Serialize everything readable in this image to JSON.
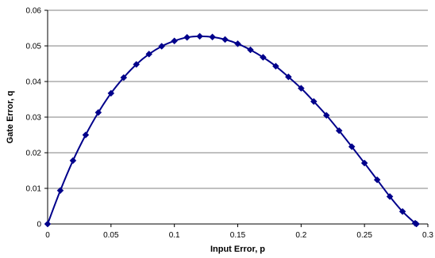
{
  "chart_data": {
    "type": "line",
    "title": "",
    "xlabel": "Input Error, p",
    "ylabel": "Gate Error, q",
    "xlim": [
      0,
      0.3
    ],
    "ylim": [
      0,
      0.06
    ],
    "xticks": [
      0,
      0.05,
      0.1,
      0.15,
      0.2,
      0.25,
      0.3
    ],
    "yticks": [
      0,
      0.01,
      0.02,
      0.03,
      0.04,
      0.05,
      0.06
    ],
    "xtick_labels": [
      "0",
      "0.05",
      "0.1",
      "0.15",
      "0.2",
      "0.25",
      "0.3"
    ],
    "ytick_labels": [
      "0",
      "0.01",
      "0.02",
      "0.03",
      "0.04",
      "0.05",
      "0.06"
    ],
    "grid": "horizontal",
    "legend": "none",
    "marker": "diamond",
    "series": [
      {
        "color": "#00008B",
        "x": [
          0,
          0.01,
          0.02,
          0.03,
          0.04,
          0.05,
          0.06,
          0.07,
          0.08,
          0.09,
          0.1,
          0.11,
          0.12,
          0.13,
          0.14,
          0.15,
          0.16,
          0.17,
          0.18,
          0.19,
          0.2,
          0.21,
          0.22,
          0.23,
          0.24,
          0.25,
          0.26,
          0.27,
          0.28,
          0.29,
          0.291
        ],
        "y": [
          0,
          0.0094,
          0.0178,
          0.025,
          0.0313,
          0.0367,
          0.0411,
          0.0448,
          0.0477,
          0.0499,
          0.0514,
          0.0524,
          0.0527,
          0.0525,
          0.0518,
          0.0506,
          0.0489,
          0.0468,
          0.0443,
          0.0413,
          0.0381,
          0.0344,
          0.0305,
          0.0262,
          0.0217,
          0.0171,
          0.0124,
          0.0077,
          0.0035,
          0.0002,
          0
        ]
      }
    ]
  }
}
